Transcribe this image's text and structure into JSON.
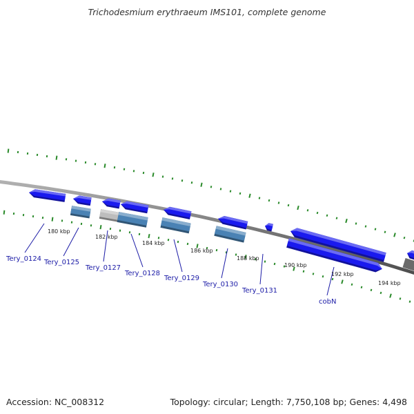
{
  "title": "Trichodesmium erythraeum IMS101, complete genome",
  "footer": {
    "accession": "Accession: NC_008312",
    "topology": "Topology: circular; Length: 7,750,108 bp; Genes: 4,498"
  },
  "colors": {
    "cds": "#1a1aee",
    "gene": "#4a82b4",
    "pseudo": "#bdbdbd",
    "backbone": "#8a8a8a",
    "ticks": "#2a8a2a",
    "label": "#1a1aa6"
  },
  "kbp_labels": [
    "180 kbp",
    "182 kbp",
    "184 kbp",
    "186 kbp",
    "188 kbp",
    "190 kbp",
    "192 kbp",
    "194 kbp"
  ],
  "gene_labels": [
    "Tery_0124",
    "Tery_0125",
    "Tery_0127",
    "Tery_0128",
    "Tery_0129",
    "Tery_0130",
    "Tery_0131",
    "cobN"
  ]
}
